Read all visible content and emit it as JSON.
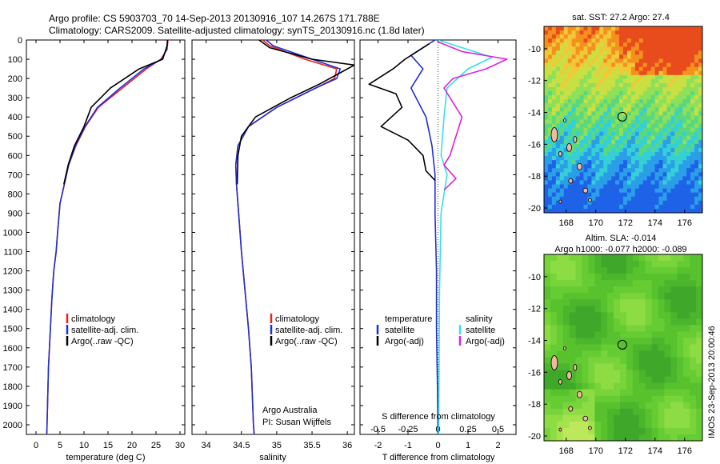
{
  "header": {
    "line1": "Argo profile: CS 5903703_70 14-Sep-2013 20130916_107 14.267S 171.788E",
    "line2": "Climatology: CARS2009. Satellite-adjusted climatology: synTS_20130916.nc (1.8d later)"
  },
  "footer": {
    "argo_australia": "Argo Australia",
    "pi": "PI: Susan Wijffels",
    "imos_stamp": "IMOS 23-Sep-2013 20:00:46"
  },
  "colors": {
    "climatology": "#e8231e",
    "satellite": "#1f2fd6",
    "argo": "#000000",
    "satellite_salinity": "#33e0ef",
    "argo_salinity": "#e020e0",
    "map_float_marker": "#000000"
  },
  "chart_data": [
    {
      "type": "line",
      "panel": "temperature",
      "xlabel": "temperature (deg C)",
      "ylabel": "",
      "xlim": [
        -2,
        31
      ],
      "ylim": [
        2050,
        0
      ],
      "xticks": [
        0,
        5,
        10,
        15,
        20,
        25,
        30
      ],
      "yticks": [
        0,
        100,
        200,
        300,
        400,
        500,
        600,
        700,
        800,
        900,
        1000,
        1100,
        1200,
        1300,
        1400,
        1500,
        1600,
        1700,
        1800,
        1900,
        2000
      ],
      "legend": [
        "climatology",
        "satellite-adj. clim.",
        "Argo(..raw -QC)"
      ],
      "series": [
        {
          "name": "climatology",
          "color": "#e8231e",
          "x": [
            27.5,
            27.3,
            26.0,
            23.0,
            18.0,
            13.0,
            10.3,
            8.3,
            6.8,
            5.9,
            5.0,
            4.5,
            4.2,
            3.7,
            3.3,
            3.0,
            2.8,
            2.6,
            2.5,
            2.4,
            2.3,
            2.25
          ],
          "depth": [
            0,
            50,
            100,
            150,
            250,
            350,
            450,
            550,
            650,
            750,
            850,
            1000,
            1100,
            1200,
            1350,
            1500,
            1600,
            1700,
            1800,
            1900,
            2000,
            2050
          ]
        },
        {
          "name": "satellite-adj. clim.",
          "color": "#1f2fd6",
          "x": [
            27.4,
            27.2,
            26.2,
            22.5,
            17.5,
            12.8,
            10.2,
            8.2,
            6.8,
            5.9,
            5.0,
            4.5,
            4.2,
            3.7,
            3.3,
            3.0,
            2.8,
            2.6,
            2.5,
            2.4,
            2.3,
            2.25
          ],
          "depth": [
            0,
            50,
            100,
            150,
            250,
            350,
            450,
            550,
            650,
            750,
            850,
            1000,
            1100,
            1200,
            1350,
            1500,
            1600,
            1700,
            1800,
            1900,
            2000,
            2050
          ]
        },
        {
          "name": "Argo(..raw -QC)",
          "color": "#000000",
          "x": [
            27.4,
            27.3,
            26.4,
            21.5,
            15.5,
            11.5,
            10.0,
            8.0,
            6.7,
            5.8
          ],
          "depth": [
            0,
            30,
            100,
            150,
            250,
            350,
            450,
            550,
            650,
            750
          ]
        }
      ]
    },
    {
      "type": "line",
      "panel": "salinity",
      "xlabel": "salinity",
      "ylabel": "",
      "xlim": [
        33.8,
        36.1
      ],
      "ylim": [
        2050,
        0
      ],
      "xticks": [
        34,
        34.5,
        35,
        35.5,
        36
      ],
      "xticklabels": [
        "34",
        "34.5",
        "35",
        "35.5",
        "36"
      ],
      "legend": [
        "climatology",
        "satellite-adj. clim.",
        "Argo(..raw -QC)"
      ],
      "series": [
        {
          "name": "climatology",
          "color": "#e8231e",
          "x": [
            34.8,
            34.9,
            35.4,
            35.85,
            35.82,
            35.55,
            35.0,
            34.6,
            34.45,
            34.42,
            34.43,
            34.46,
            34.5,
            34.55,
            34.6,
            34.64,
            34.66,
            34.67,
            34.68
          ],
          "depth": [
            0,
            30,
            100,
            150,
            200,
            250,
            350,
            450,
            550,
            650,
            750,
            900,
            1100,
            1300,
            1500,
            1700,
            1900,
            2000,
            2050
          ]
        },
        {
          "name": "satellite-adj. clim.",
          "color": "#1f2fd6",
          "x": [
            34.85,
            34.95,
            35.5,
            35.9,
            35.85,
            35.55,
            35.0,
            34.6,
            34.45,
            34.42,
            34.43,
            34.46,
            34.5,
            34.55,
            34.6,
            34.64,
            34.66,
            34.67,
            34.68
          ],
          "depth": [
            0,
            30,
            100,
            150,
            200,
            250,
            350,
            450,
            550,
            650,
            750,
            900,
            1100,
            1300,
            1500,
            1700,
            1900,
            2000,
            2050
          ]
        },
        {
          "name": "Argo(..raw -QC)",
          "color": "#000000",
          "x": [
            34.75,
            34.9,
            35.5,
            36.1,
            35.95,
            35.6,
            35.2,
            34.7,
            34.5,
            34.45,
            34.44
          ],
          "depth": [
            0,
            40,
            100,
            130,
            160,
            230,
            300,
            400,
            500,
            600,
            750
          ]
        }
      ]
    },
    {
      "type": "line",
      "panel": "difference",
      "xlabel": "T difference from climatology",
      "xlabel2": "S difference from climatology",
      "xlim": [
        -2.6,
        2.6
      ],
      "ylim": [
        2050,
        0
      ],
      "xticks": [
        -2,
        -1,
        0,
        1,
        2
      ],
      "s_xticks": [
        -0.5,
        -0.25,
        0,
        0.25,
        0.5
      ],
      "s_xticklabels": [
        "-0.5",
        "-0.25",
        "0",
        "0.25",
        "0.5"
      ],
      "legend_temperature_title": "temperature",
      "legend_salinity_title": "salinity",
      "legend": [
        "satellite",
        "Argo(-adj)",
        "satellite",
        "Argo(-adj)"
      ],
      "series": [
        {
          "name": "satellite",
          "color": "#1f2fd6",
          "var": "T",
          "x": [
            -0.1,
            -0.9,
            -0.5,
            -0.9,
            -0.4,
            -0.2,
            -0.1,
            -0.1,
            -0.05,
            -0.05,
            -0.02,
            0
          ],
          "depth": [
            0,
            80,
            150,
            250,
            400,
            550,
            700,
            900,
            1200,
            1500,
            1800,
            2050
          ]
        },
        {
          "name": "Argo(-adj)",
          "color": "#000000",
          "var": "T",
          "x": [
            -0.3,
            -1.1,
            -1.5,
            -2.3,
            -1.4,
            -1.2,
            -1.9,
            -1.0,
            -0.5,
            -0.4,
            -0.1
          ],
          "depth": [
            20,
            100,
            150,
            230,
            280,
            350,
            450,
            520,
            600,
            680,
            730
          ]
        },
        {
          "name": "satellite",
          "color": "#33e0ef",
          "var": "S",
          "x": [
            0,
            1.2,
            1.8,
            1.0,
            0.3,
            0.2,
            0.1,
            0.3,
            0.1,
            0.05,
            0.02
          ],
          "depth": [
            0,
            60,
            90,
            150,
            250,
            400,
            600,
            700,
            900,
            1300,
            2050
          ]
        },
        {
          "name": "Argo(-adj)",
          "color": "#e020e0",
          "var": "S",
          "x": [
            0,
            0.8,
            2.3,
            1.6,
            0.5,
            0.2,
            0.8,
            0.4,
            0.2,
            0.6,
            0.2
          ],
          "depth": [
            10,
            60,
            100,
            150,
            200,
            250,
            400,
            600,
            650,
            720,
            780
          ]
        }
      ]
    },
    {
      "type": "heatmap",
      "panel": "sst-map",
      "title": "sat. SST: 27.2 Argo: 27.4",
      "xlim": [
        166.5,
        177.2
      ],
      "ylim": [
        -20.3,
        -8.6
      ],
      "xticks": [
        168,
        170,
        172,
        174,
        176
      ],
      "yticks": [
        -10,
        -12,
        -14,
        -16,
        -18,
        -20
      ],
      "float_position": {
        "lon": 171.788,
        "lat": -14.267
      },
      "colormap": [
        "#1e62e8",
        "#2a9fe8",
        "#35d0d6",
        "#5bd87d",
        "#8ee05a",
        "#c8e043",
        "#f0c838",
        "#f5901f",
        "#e84c1c"
      ]
    },
    {
      "type": "heatmap",
      "panel": "sla-map",
      "title": "Altim. SLA: -0.014",
      "subtitle": "Argo h1000: -0.077 h2000: -0.089",
      "xlim": [
        166.5,
        177.2
      ],
      "ylim": [
        -20.3,
        -8.6
      ],
      "xticks": [
        168,
        170,
        172,
        174,
        176
      ],
      "yticks": [
        -10,
        -12,
        -14,
        -16,
        -18,
        -20
      ],
      "float_position": {
        "lon": 171.788,
        "lat": -14.267
      }
    }
  ]
}
